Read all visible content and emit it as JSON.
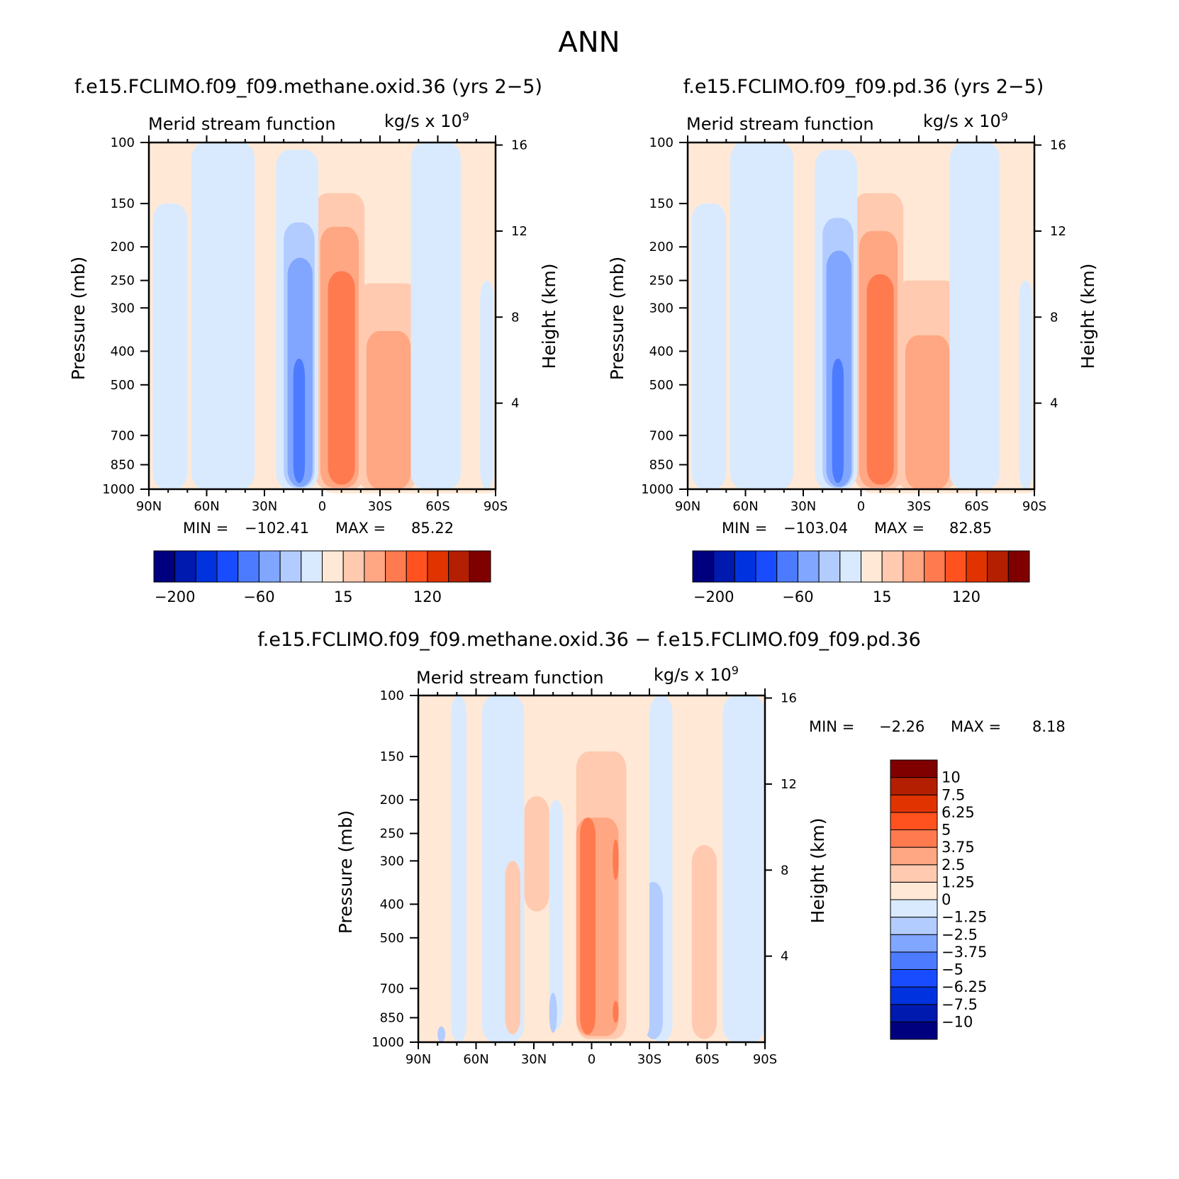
{
  "page": {
    "title": "ANN"
  },
  "chart_data": [
    {
      "type": "heatmap",
      "case_label": "f.e15.FCLIMO.f09_f09.methane.oxid.36 (yrs 2−5)",
      "title": "Merid stream function",
      "units_prefix": "kg/s x 10",
      "units_exp": "9",
      "ylabel": "Pressure (mb)",
      "ylabel_right": "Height (km)",
      "x_ticks": [
        "90N",
        "60N",
        "30N",
        "0",
        "30S",
        "60S",
        "90S"
      ],
      "y_ticks": [
        "100",
        "150",
        "200",
        "250",
        "300",
        "400",
        "500",
        "700",
        "850",
        "1000"
      ],
      "y_ticks_right": [
        "16",
        "12",
        "8",
        "4"
      ],
      "min_label": "MIN =",
      "min_value": "−102.41",
      "max_label": "MAX =",
      "max_value": "85.22",
      "colorbar_labels": [
        "−200",
        "−60",
        "15",
        "120"
      ],
      "cells": [
        {
          "lat": [
            -54,
            -14
          ],
          "p": [
            130,
            1000
          ],
          "v": 5
        },
        {
          "lat": [
            -50,
            -18
          ],
          "p": [
            255,
            1000
          ],
          "v": 25
        },
        {
          "lat": [
            -46,
            -23
          ],
          "p": [
            350,
            1000
          ],
          "v": 50
        },
        {
          "lat": [
            -90,
            -2
          ],
          "p": [
            1000,
            1000
          ],
          "v": 10
        },
        {
          "lat": [
            -22,
            4
          ],
          "p": [
            140,
            1000
          ],
          "v": 25
        },
        {
          "lat": [
            -19,
            1
          ],
          "p": [
            175,
            990
          ],
          "v": 50
        },
        {
          "lat": [
            -17,
            -3
          ],
          "p": [
            235,
            970
          ],
          "v": 75
        },
        {
          "lat": [
            2,
            24
          ],
          "p": [
            105,
            1000
          ],
          "v": -15
        },
        {
          "lat": [
            4,
            20
          ],
          "p": [
            170,
            990
          ],
          "v": -30
        },
        {
          "lat": [
            5,
            18
          ],
          "p": [
            215,
            985
          ],
          "v": -45
        },
        {
          "lat": [
            7,
            17
          ],
          "p": [
            240,
            975
          ],
          "v": -60
        },
        {
          "lat": [
            9,
            15
          ],
          "p": [
            420,
            960
          ],
          "v": -75
        },
        {
          "lat": [
            35,
            68
          ],
          "p": [
            100,
            1000
          ],
          "v": -5
        },
        {
          "lat": [
            45,
            64
          ],
          "p": [
            330,
            980
          ],
          "v": -15
        },
        {
          "lat": [
            80,
            90
          ],
          "p": [
            100,
            1000
          ],
          "v": 5
        },
        {
          "lat": [
            -72,
            -46
          ],
          "p": [
            100,
            1000
          ],
          "v": -5
        },
        {
          "lat": [
            -89,
            -82
          ],
          "p": [
            250,
            1000
          ],
          "v": -5
        },
        {
          "lat": [
            70,
            88
          ],
          "p": [
            150,
            1000
          ],
          "v": -5
        }
      ]
    },
    {
      "type": "heatmap",
      "case_label": "f.e15.FCLIMO.f09_f09.pd.36 (yrs 2−5)",
      "title": "Merid stream function",
      "units_prefix": "kg/s x 10",
      "units_exp": "9",
      "ylabel": "Pressure (mb)",
      "ylabel_right": "Height (km)",
      "x_ticks": [
        "90N",
        "60N",
        "30N",
        "0",
        "30S",
        "60S",
        "90S"
      ],
      "y_ticks": [
        "100",
        "150",
        "200",
        "250",
        "300",
        "400",
        "500",
        "700",
        "850",
        "1000"
      ],
      "y_ticks_right": [
        "16",
        "12",
        "8",
        "4"
      ],
      "min_label": "MIN =",
      "min_value": "−103.04",
      "max_label": "MAX =",
      "max_value": "82.85",
      "colorbar_labels": [
        "−200",
        "−60",
        "15",
        "120"
      ],
      "cells": [
        {
          "lat": [
            -55,
            -14
          ],
          "p": [
            128,
            1000
          ],
          "v": 5
        },
        {
          "lat": [
            -50,
            -18
          ],
          "p": [
            250,
            1000
          ],
          "v": 25
        },
        {
          "lat": [
            -46,
            -23
          ],
          "p": [
            360,
            1000
          ],
          "v": 50
        },
        {
          "lat": [
            -90,
            -2
          ],
          "p": [
            1000,
            1000
          ],
          "v": 10
        },
        {
          "lat": [
            -22,
            4
          ],
          "p": [
            140,
            1000
          ],
          "v": 25
        },
        {
          "lat": [
            -19,
            1
          ],
          "p": [
            180,
            990
          ],
          "v": 50
        },
        {
          "lat": [
            -17,
            -3
          ],
          "p": [
            240,
            970
          ],
          "v": 75
        },
        {
          "lat": [
            2,
            24
          ],
          "p": [
            105,
            1000
          ],
          "v": -15
        },
        {
          "lat": [
            4,
            20
          ],
          "p": [
            165,
            990
          ],
          "v": -30
        },
        {
          "lat": [
            5,
            18
          ],
          "p": [
            205,
            985
          ],
          "v": -45
        },
        {
          "lat": [
            7,
            17
          ],
          "p": [
            240,
            975
          ],
          "v": -60
        },
        {
          "lat": [
            9,
            15
          ],
          "p": [
            420,
            960
          ],
          "v": -75
        },
        {
          "lat": [
            35,
            68
          ],
          "p": [
            100,
            1000
          ],
          "v": -5
        },
        {
          "lat": [
            45,
            64
          ],
          "p": [
            330,
            980
          ],
          "v": -15
        },
        {
          "lat": [
            80,
            90
          ],
          "p": [
            100,
            1000
          ],
          "v": 5
        },
        {
          "lat": [
            -72,
            -46
          ],
          "p": [
            100,
            1000
          ],
          "v": -5
        },
        {
          "lat": [
            -89,
            -82
          ],
          "p": [
            250,
            1000
          ],
          "v": -5
        },
        {
          "lat": [
            70,
            88
          ],
          "p": [
            150,
            1000
          ],
          "v": -5
        }
      ]
    },
    {
      "type": "heatmap",
      "case_label": "f.e15.FCLIMO.f09_f09.methane.oxid.36 − f.e15.FCLIMO.f09_f09.pd.36",
      "title": "Merid stream function",
      "units_prefix": "kg/s x 10",
      "units_exp": "9",
      "ylabel": "Pressure (mb)",
      "ylabel_right": "Height (km)",
      "x_ticks": [
        "90N",
        "60N",
        "30N",
        "0",
        "30S",
        "60S",
        "90S"
      ],
      "y_ticks": [
        "100",
        "150",
        "200",
        "250",
        "300",
        "400",
        "500",
        "700",
        "850",
        "1000"
      ],
      "y_ticks_right": [
        "16",
        "12",
        "8",
        "4"
      ],
      "min_label": "MIN =",
      "min_value": "−2.26",
      "max_label": "MAX =",
      "max_value": "8.18",
      "colorbar_labels": [
        "10",
        "7.5",
        "6.25",
        "5",
        "3.75",
        "2.5",
        "1.25",
        "0",
        "−1.25",
        "−2.5",
        "−3.75",
        "−5",
        "−6.25",
        "−7.5",
        "−10"
      ],
      "cells": [
        {
          "lat": [
            -90,
            -68
          ],
          "p": [
            100,
            1000
          ],
          "v": -0.6
        },
        {
          "lat": [
            -68,
            -58
          ],
          "p": [
            100,
            1000
          ],
          "v": 0.6
        },
        {
          "lat": [
            -65,
            -52
          ],
          "p": [
            270,
            980
          ],
          "v": 1.8
        },
        {
          "lat": [
            -42,
            -30
          ],
          "p": [
            100,
            1000
          ],
          "v": -0.6
        },
        {
          "lat": [
            -37,
            -27
          ],
          "p": [
            345,
            980
          ],
          "v": -1.8
        },
        {
          "lat": [
            -30,
            35
          ],
          "p": [
            100,
            1000
          ],
          "v": 0.6
        },
        {
          "lat": [
            -18,
            8
          ],
          "p": [
            145,
            980
          ],
          "v": 1.8
        },
        {
          "lat": [
            -14,
            8
          ],
          "p": [
            225,
            960
          ],
          "v": 3.2
        },
        {
          "lat": [
            -2,
            6
          ],
          "p": [
            225,
            950
          ],
          "v": 4.4
        },
        {
          "lat": [
            -14,
            -11
          ],
          "p": [
            260,
            340
          ],
          "v": 4.4
        },
        {
          "lat": [
            -14,
            -11
          ],
          "p": [
            760,
            880
          ],
          "v": 4.4
        },
        {
          "lat": [
            15,
            22
          ],
          "p": [
            200,
            920
          ],
          "v": -0.6
        },
        {
          "lat": [
            18,
            22
          ],
          "p": [
            720,
            940
          ],
          "v": -1.8
        },
        {
          "lat": [
            22,
            35
          ],
          "p": [
            195,
            420
          ],
          "v": 1.8
        },
        {
          "lat": [
            35,
            57
          ],
          "p": [
            100,
            1000
          ],
          "v": -0.6
        },
        {
          "lat": [
            37,
            45
          ],
          "p": [
            300,
            950
          ],
          "v": 1.8
        },
        {
          "lat": [
            65,
            73
          ],
          "p": [
            100,
            1000
          ],
          "v": -0.6
        },
        {
          "lat": [
            76,
            80
          ],
          "p": [
            900,
            1000
          ],
          "v": -1.8
        }
      ]
    }
  ],
  "colors": {
    "diverging": [
      "#00007f",
      "#0019af",
      "#0033df",
      "#1a4cff",
      "#4d7bff",
      "#80a6ff",
      "#b3ccff",
      "#d9eaff",
      "#ffe9d6",
      "#ffcab0",
      "#ffa683",
      "#ff7a4f",
      "#ff521f",
      "#e03300",
      "#b31f00",
      "#800000"
    ]
  }
}
